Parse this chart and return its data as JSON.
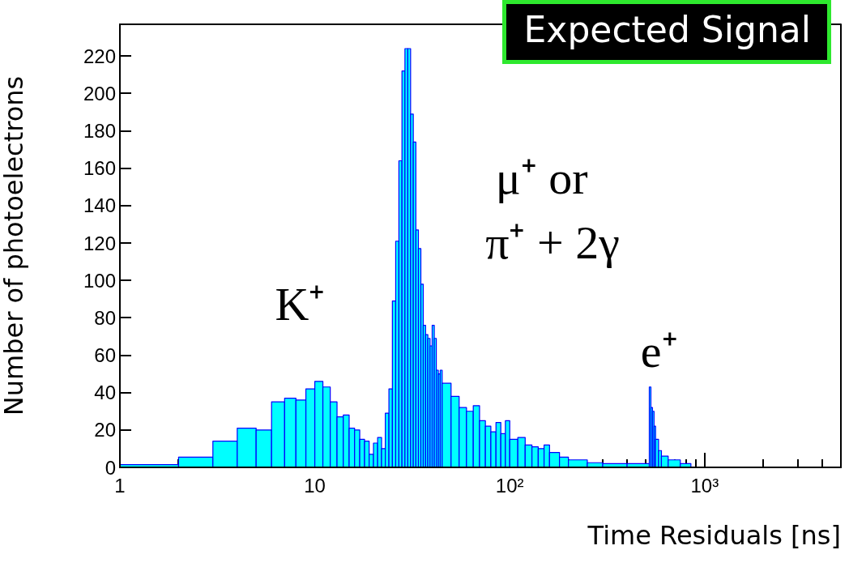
{
  "chart_data": {
    "type": "histogram",
    "title": "Expected Signal",
    "ylabel": "Number of photoelectrons",
    "xlabel": "Time Residuals [ns]",
    "bins": [
      1,
      2,
      3,
      4,
      5,
      6,
      7,
      8,
      9,
      10,
      11,
      12,
      13,
      14,
      15,
      16,
      17,
      18,
      19,
      20,
      21,
      22,
      23,
      24,
      25,
      26,
      27,
      28,
      29,
      30,
      31,
      32,
      33,
      34,
      35,
      36,
      37,
      38,
      39,
      40,
      41,
      42,
      43,
      44,
      45,
      50,
      55,
      60,
      65,
      70,
      75,
      80,
      85,
      90,
      95,
      100,
      110,
      120,
      130,
      140,
      150,
      160,
      180,
      200,
      250,
      300,
      400,
      520,
      530,
      540,
      550,
      560,
      580,
      600,
      650,
      750,
      850
    ],
    "values": [
      1.5,
      5.5,
      14,
      21,
      20,
      35,
      37,
      36,
      42,
      46,
      43,
      35,
      27,
      28,
      21,
      20,
      15,
      14,
      7,
      13,
      16,
      10,
      29,
      42,
      89,
      121,
      164,
      212,
      224,
      224,
      189,
      174,
      127,
      117,
      98,
      76,
      71,
      69,
      65,
      76,
      69,
      52,
      50,
      52,
      45,
      38,
      32,
      30,
      33,
      25,
      22,
      19,
      24,
      18,
      25,
      15,
      16,
      12,
      11,
      10,
      12,
      8,
      5.5,
      4,
      2.5,
      2,
      2,
      43,
      32,
      30,
      22,
      15,
      9,
      6,
      4,
      2
    ],
    "color": "#00ffff",
    "log": "x",
    "xlim": [
      1,
      5000
    ],
    "ylim": [
      0,
      237
    ],
    "xticks": [
      1,
      {
        "value": 2,
        "label": null
      },
      {
        "value": 3,
        "label": null
      },
      {
        "value": 4,
        "label": null
      },
      {
        "value": 5,
        "label": null
      },
      {
        "value": 6,
        "label": null
      },
      {
        "value": 7,
        "label": null
      },
      {
        "value": 8,
        "label": null
      },
      {
        "value": 9,
        "label": null
      },
      10,
      {
        "value": 20,
        "label": null
      },
      {
        "value": 30,
        "label": null
      },
      {
        "value": 40,
        "label": null
      },
      {
        "value": 50,
        "label": null
      },
      {
        "value": 60,
        "label": null
      },
      {
        "value": 70,
        "label": null
      },
      {
        "value": 80,
        "label": null
      },
      {
        "value": 90,
        "label": null
      },
      {
        "value": 100,
        "label": "10²"
      },
      {
        "value": 200,
        "label": null
      },
      {
        "value": 300,
        "label": null
      },
      {
        "value": 400,
        "label": null
      },
      {
        "value": 500,
        "label": null
      },
      {
        "value": 600,
        "label": null
      },
      {
        "value": 700,
        "label": null
      },
      {
        "value": 800,
        "label": null
      },
      {
        "value": 900,
        "label": null
      },
      {
        "value": 1000,
        "label": "10³"
      },
      {
        "value": 2000,
        "label": null
      },
      {
        "value": 3000,
        "label": null
      },
      {
        "value": 4000,
        "label": null
      }
    ],
    "yticks": [
      0,
      20,
      40,
      60,
      80,
      100,
      120,
      140,
      160,
      180,
      200,
      220
    ],
    "annotations": [
      "K⁺",
      "μ⁺ or",
      "π⁺ + 2γ",
      "e⁺"
    ]
  }
}
